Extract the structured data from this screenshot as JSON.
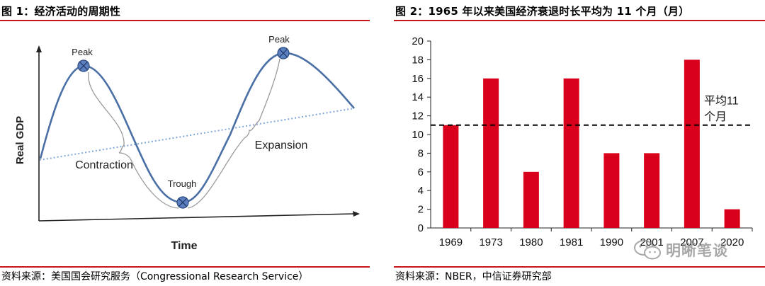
{
  "left_panel": {
    "title": "图 1：经济活动的周期性",
    "source": "资料来源：美国国会研究服务（Congressional Research Service）"
  },
  "right_panel": {
    "title": "图 2：1965 年以来美国经济衰退时长平均为 11 个月（月）",
    "source": "资料来源：NBER，中信证券研究部"
  },
  "watermark": {
    "text": "明晰笔谈",
    "icon": "wechat-icon"
  },
  "colors": {
    "rule": "#c8161d",
    "bar": "#d9001b",
    "curve": "#4a6fa5",
    "trend": "#7fa7d9",
    "marker": "#5b7fbf"
  },
  "chart_data": [
    {
      "type": "diagram",
      "title": "经济活动的周期性",
      "xlabel": "Time",
      "ylabel": "Real GDP",
      "annotations": [
        "Peak",
        "Peak",
        "Trough",
        "Contraction",
        "Expansion"
      ],
      "series": [
        {
          "name": "business-cycle",
          "style": "solid",
          "shape": "sinusoid"
        },
        {
          "name": "trend",
          "style": "dotted",
          "shape": "rising-line"
        }
      ]
    },
    {
      "type": "bar",
      "title": "1965 年以来美国经济衰退时长平均为 11 个月（月）",
      "categories": [
        "1969",
        "1973",
        "1980",
        "1981",
        "1990",
        "2001",
        "2007",
        "2020"
      ],
      "values": [
        11,
        16,
        6,
        16,
        8,
        8,
        18,
        2
      ],
      "ylim": [
        0,
        20
      ],
      "yticks": [
        0,
        2,
        4,
        6,
        8,
        10,
        12,
        14,
        16,
        18,
        20
      ],
      "average": {
        "value": 11,
        "label_line1": "平均11",
        "label_line2": "个月"
      },
      "xlabel": "",
      "ylabel": ""
    }
  ]
}
